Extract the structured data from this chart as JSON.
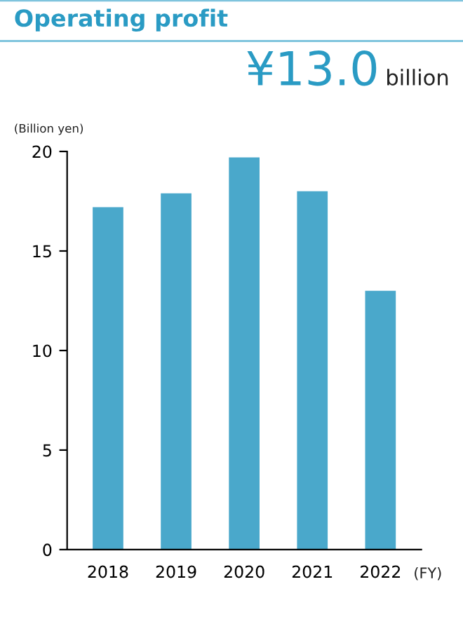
{
  "chart_data": {
    "type": "bar",
    "title": "Operating profit",
    "subtitle": "¥13.0 billion",
    "ylabel": "(Billion yen)",
    "xlabel": "(FY)",
    "categories": [
      "2018",
      "2019",
      "2020",
      "2021",
      "2022"
    ],
    "values": [
      17.2,
      17.9,
      19.7,
      18.0,
      13.0
    ],
    "color": "#4aa8cb",
    "ylim": [
      0,
      20
    ],
    "yticks": [
      0,
      5,
      10,
      15,
      20
    ],
    "grid": false,
    "legend": false
  }
}
